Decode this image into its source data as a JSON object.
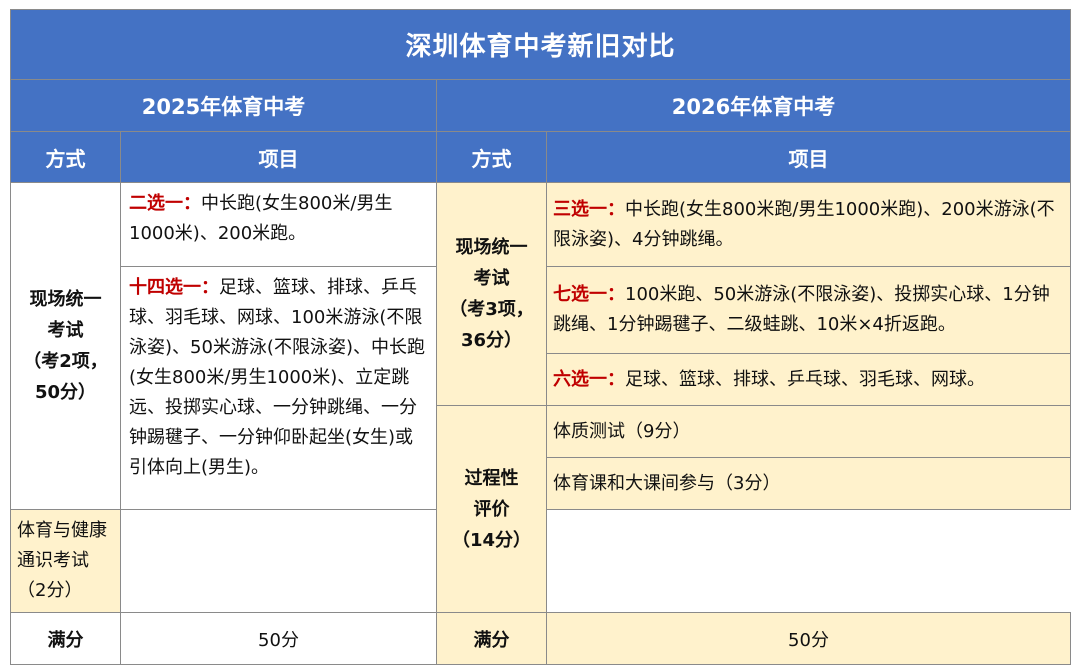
{
  "title": "深圳体育中考新旧对比",
  "y2025": {
    "header": "2025年体育中考",
    "col_method": "方式",
    "col_items": "项目",
    "method": [
      "现场统一",
      "考试",
      "（考2项，",
      "50分）"
    ],
    "groups": [
      {
        "label": "二选一：",
        "text": "中长跑(女生800米/男生1000米)、200米跑。"
      },
      {
        "label": "十四选一：",
        "text": "足球、篮球、排球、乒乓球、羽毛球、网球、100米游泳(不限泳姿)、50米游泳(不限泳姿)、中长跑(女生800米/男生1000米)、立定跳远、投掷实心球、一分钟跳绳、一分钟踢毽子、一分钟仰卧起坐(女生)或引体向上(男生)。"
      }
    ],
    "full_label": "满分",
    "full_value": "50分"
  },
  "y2026": {
    "header": "2026年体育中考",
    "col_method": "方式",
    "col_items": "项目",
    "method_onsite": [
      "现场统一",
      "考试",
      "（考3项，",
      "36分）"
    ],
    "groups": [
      {
        "label": "三选一：",
        "text": "中长跑(女生800米跑/男生1000米跑)、200米游泳(不限泳姿)、4分钟跳绳。"
      },
      {
        "label": "七选一：",
        "text": "100米跑、50米游泳(不限泳姿)、投掷实心球、1分钟跳绳、1分钟踢毽子、二级蛙跳、10米×4折返跑。"
      },
      {
        "label": "六选一：",
        "text": "足球、篮球、排球、乒乓球、羽毛球、网球。"
      }
    ],
    "method_process": [
      "过程性",
      "评价",
      "（14分）"
    ],
    "process_items": [
      "体质测试（9分）",
      "体育课和大课间参与（3分）",
      "体育与健康通识考试（2分）"
    ],
    "full_label": "满分",
    "full_value": "50分"
  }
}
